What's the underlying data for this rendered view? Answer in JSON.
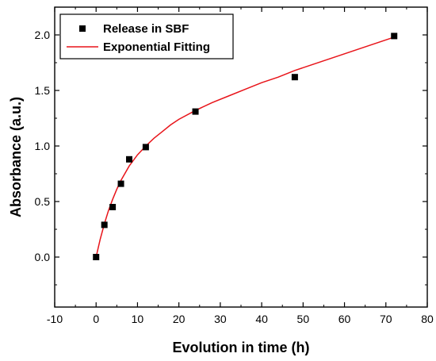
{
  "chart_data": {
    "type": "scatter",
    "xlabel": "Evolution in time (h)",
    "ylabel": "Absorbance (a.u.)",
    "xlim": [
      -10,
      80
    ],
    "ylim": [
      -0.45,
      2.25
    ],
    "xticks": [
      "-10",
      "0",
      "10",
      "20",
      "30",
      "40",
      "50",
      "60",
      "70",
      "80"
    ],
    "yticks": [
      "0.0",
      "0.5",
      "1.0",
      "1.5",
      "2.0"
    ],
    "grid": false,
    "legend_position": "top-left",
    "series": [
      {
        "name": "Release in SBF",
        "kind": "scatter",
        "marker": "square",
        "color": "#000000",
        "x": [
          0,
          2,
          4,
          6,
          8,
          12,
          24,
          48,
          72
        ],
        "y": [
          0.0,
          0.29,
          0.45,
          0.66,
          0.88,
          0.99,
          1.31,
          1.62,
          1.99
        ]
      },
      {
        "name": "Exponential Fitting",
        "kind": "line",
        "color": "#e8141a",
        "x": [
          0,
          1,
          2,
          3,
          4,
          5,
          6,
          8,
          10,
          12,
          14,
          16,
          18,
          20,
          24,
          28,
          32,
          36,
          40,
          44,
          48,
          52,
          56,
          60,
          64,
          68,
          72
        ],
        "y": [
          0.0,
          0.16,
          0.3,
          0.42,
          0.52,
          0.61,
          0.69,
          0.82,
          0.92,
          1.0,
          1.07,
          1.13,
          1.19,
          1.24,
          1.32,
          1.39,
          1.45,
          1.51,
          1.57,
          1.62,
          1.68,
          1.73,
          1.78,
          1.83,
          1.88,
          1.93,
          1.98
        ]
      }
    ]
  }
}
